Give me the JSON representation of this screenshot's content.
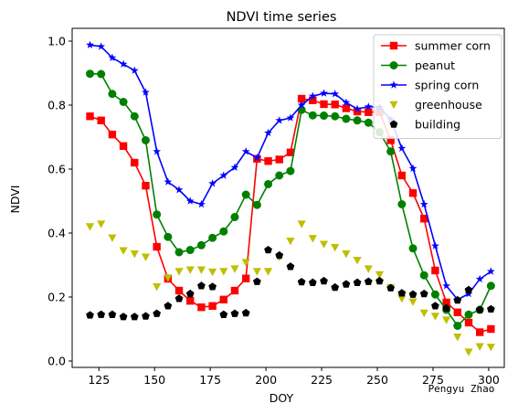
{
  "chart_data": {
    "type": "line",
    "title": "NDVI time series",
    "xlabel": "DOY",
    "ylabel": "NDVI",
    "xlim": [
      113,
      307
    ],
    "ylim": [
      -0.02,
      1.04
    ],
    "xticks": [
      125,
      150,
      175,
      200,
      225,
      250,
      275,
      300
    ],
    "yticks": [
      0.0,
      0.2,
      0.4,
      0.6,
      0.8,
      1.0
    ],
    "legend_position": "top-right",
    "grid": false,
    "watermark": "Pengyu Zhao",
    "x": [
      121,
      126,
      131,
      136,
      141,
      146,
      151,
      156,
      161,
      166,
      171,
      176,
      181,
      186,
      191,
      196,
      201,
      206,
      211,
      216,
      221,
      226,
      231,
      236,
      241,
      246,
      251,
      256,
      261,
      266,
      271,
      276,
      281,
      286,
      291,
      296,
      301
    ],
    "series": [
      {
        "name": "summer corn",
        "color": "#ff0000",
        "marker": "square",
        "line": true,
        "values": [
          0.765,
          0.752,
          0.708,
          0.672,
          0.62,
          0.548,
          0.357,
          0.257,
          0.22,
          0.188,
          0.168,
          0.172,
          0.192,
          0.22,
          0.258,
          0.632,
          0.625,
          0.63,
          0.652,
          0.82,
          0.815,
          0.803,
          0.802,
          0.79,
          0.78,
          0.778,
          0.778,
          0.69,
          0.58,
          0.525,
          0.445,
          0.283,
          0.183,
          0.152,
          0.12,
          0.09,
          0.1
        ]
      },
      {
        "name": "peanut",
        "color": "#008000",
        "marker": "circle",
        "line": true,
        "values": [
          0.898,
          0.897,
          0.835,
          0.81,
          0.765,
          0.69,
          0.458,
          0.388,
          0.34,
          0.347,
          0.362,
          0.385,
          0.405,
          0.45,
          0.52,
          0.488,
          0.553,
          0.58,
          0.594,
          0.785,
          0.768,
          0.767,
          0.765,
          0.757,
          0.752,
          0.745,
          0.715,
          0.655,
          0.49,
          0.352,
          0.268,
          0.208,
          0.16,
          0.11,
          0.145,
          0.16,
          0.235
        ]
      },
      {
        "name": "spring corn",
        "color": "#0000ff",
        "marker": "star",
        "line": true,
        "values": [
          0.988,
          0.983,
          0.948,
          0.928,
          0.908,
          0.84,
          0.655,
          0.56,
          0.535,
          0.5,
          0.49,
          0.555,
          0.58,
          0.605,
          0.655,
          0.635,
          0.713,
          0.752,
          0.76,
          0.8,
          0.828,
          0.837,
          0.835,
          0.808,
          0.788,
          0.795,
          0.793,
          0.755,
          0.665,
          0.602,
          0.49,
          0.36,
          0.235,
          0.192,
          0.21,
          0.256,
          0.28
        ]
      },
      {
        "name": "greenhouse",
        "color": "#bfbf00",
        "marker": "triangle-down",
        "line": false,
        "values": [
          0.42,
          0.428,
          0.385,
          0.345,
          0.335,
          0.325,
          0.232,
          0.26,
          0.28,
          0.285,
          0.285,
          0.278,
          0.28,
          0.288,
          0.308,
          0.28,
          0.28,
          0.325,
          0.375,
          0.428,
          0.383,
          0.365,
          0.355,
          0.335,
          0.315,
          0.288,
          0.27,
          0.23,
          0.195,
          0.185,
          0.15,
          0.14,
          0.128,
          0.075,
          0.028,
          0.045,
          0.043
        ]
      },
      {
        "name": "building",
        "color": "#000000",
        "marker": "pentagon",
        "line": false,
        "values": [
          0.143,
          0.145,
          0.145,
          0.138,
          0.138,
          0.14,
          0.148,
          0.172,
          0.195,
          0.21,
          0.235,
          0.232,
          0.145,
          0.148,
          0.15,
          0.248,
          0.347,
          0.33,
          0.295,
          0.247,
          0.245,
          0.25,
          0.23,
          0.24,
          0.245,
          0.248,
          0.25,
          0.228,
          0.212,
          0.208,
          0.21,
          0.172,
          0.165,
          0.19,
          0.222,
          0.16,
          0.162
        ]
      }
    ]
  }
}
